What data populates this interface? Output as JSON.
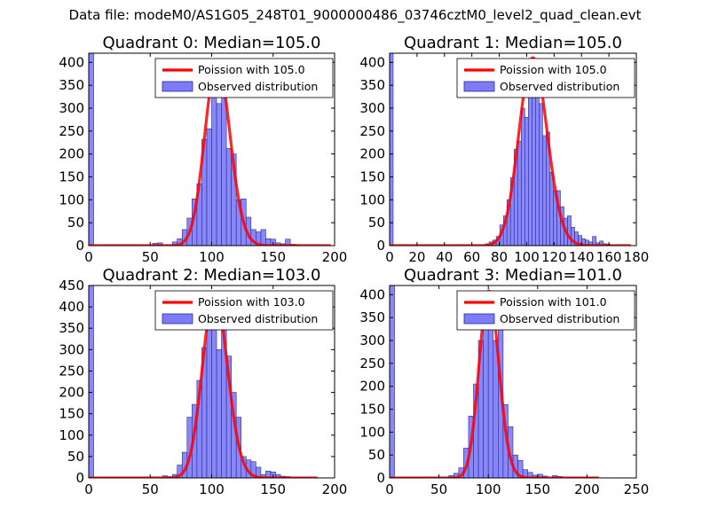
{
  "figure": {
    "suptitle": "Data file: modeM0/AS1G05_248T01_9000000486_03746cztM0_level2_quad_clean.evt"
  },
  "colors": {
    "bar_fill": "#7b7bfb",
    "bar_edge": "#2a2a90",
    "poisson_line": "#ff0000",
    "poisson_overlap": "#f08a8a",
    "axes": "#000000",
    "legend_edge": "#000000"
  },
  "chart_data": [
    {
      "type": "bar",
      "title": "Quadrant 0: Median=105.0",
      "xlim": [
        0,
        200
      ],
      "ylim": [
        0,
        420
      ],
      "xticks": [
        0,
        50,
        100,
        150,
        200
      ],
      "yticks": [
        0,
        50,
        100,
        150,
        200,
        250,
        300,
        350,
        400
      ],
      "median": 105.0,
      "legend": {
        "position": "upper right",
        "line_label": "Poission with 105.0",
        "bar_label": "Observed distribution"
      },
      "bins": [
        {
          "x0": 0,
          "w": 4,
          "v": 420
        },
        {
          "x0": 52,
          "w": 4,
          "v": 5
        },
        {
          "x0": 56,
          "w": 4,
          "v": 6
        },
        {
          "x0": 60,
          "w": 4,
          "v": 0
        },
        {
          "x0": 68,
          "w": 4,
          "v": 8
        },
        {
          "x0": 72,
          "w": 4,
          "v": 15
        },
        {
          "x0": 76,
          "w": 4,
          "v": 35
        },
        {
          "x0": 80,
          "w": 4,
          "v": 60
        },
        {
          "x0": 84,
          "w": 4,
          "v": 102
        },
        {
          "x0": 88,
          "w": 4,
          "v": 135
        },
        {
          "x0": 92,
          "w": 4,
          "v": 232
        },
        {
          "x0": 96,
          "w": 4,
          "v": 255
        },
        {
          "x0": 100,
          "w": 4,
          "v": 390
        },
        {
          "x0": 104,
          "w": 4,
          "v": 310
        },
        {
          "x0": 108,
          "w": 4,
          "v": 340
        },
        {
          "x0": 112,
          "w": 4,
          "v": 212
        },
        {
          "x0": 116,
          "w": 4,
          "v": 200
        },
        {
          "x0": 120,
          "w": 4,
          "v": 100
        },
        {
          "x0": 124,
          "w": 4,
          "v": 102
        },
        {
          "x0": 128,
          "w": 4,
          "v": 62
        },
        {
          "x0": 132,
          "w": 4,
          "v": 35
        },
        {
          "x0": 136,
          "w": 4,
          "v": 30
        },
        {
          "x0": 140,
          "w": 4,
          "v": 35
        },
        {
          "x0": 144,
          "w": 4,
          "v": 15
        },
        {
          "x0": 148,
          "w": 4,
          "v": 14
        },
        {
          "x0": 152,
          "w": 4,
          "v": 6
        },
        {
          "x0": 156,
          "w": 4,
          "v": 4
        },
        {
          "x0": 160,
          "w": 4,
          "v": 14
        },
        {
          "x0": 164,
          "w": 4,
          "v": 3
        },
        {
          "x0": 168,
          "w": 4,
          "v": 2
        }
      ],
      "curve": {
        "mu": 105.0,
        "peak": 400,
        "x_min": 0,
        "x_max": 197
      }
    },
    {
      "type": "bar",
      "title": "Quadrant 1: Median=105.0",
      "xlim": [
        0,
        180
      ],
      "ylim": [
        0,
        420
      ],
      "xticks": [
        0,
        20,
        40,
        60,
        80,
        100,
        120,
        140,
        160,
        180
      ],
      "yticks": [
        0,
        50,
        100,
        150,
        200,
        250,
        300,
        350,
        400
      ],
      "median": 105.0,
      "legend": {
        "position": "upper right",
        "line_label": "Poission with 105.0",
        "bar_label": "Observed distribution"
      },
      "bins": [
        {
          "x0": 0,
          "w": 2.6,
          "v": 420
        },
        {
          "x0": 70,
          "w": 2.6,
          "v": 4
        },
        {
          "x0": 72.6,
          "w": 2.6,
          "v": 8
        },
        {
          "x0": 75.2,
          "w": 2.6,
          "v": 12
        },
        {
          "x0": 77.8,
          "w": 2.6,
          "v": 20
        },
        {
          "x0": 80.4,
          "w": 2.6,
          "v": 45
        },
        {
          "x0": 83,
          "w": 2.6,
          "v": 65
        },
        {
          "x0": 85.6,
          "w": 2.6,
          "v": 100
        },
        {
          "x0": 88.2,
          "w": 2.6,
          "v": 148
        },
        {
          "x0": 90.8,
          "w": 2.6,
          "v": 210
        },
        {
          "x0": 93.4,
          "w": 2.6,
          "v": 228
        },
        {
          "x0": 96,
          "w": 2.6,
          "v": 300
        },
        {
          "x0": 98.6,
          "w": 2.6,
          "v": 280
        },
        {
          "x0": 101.2,
          "w": 2.6,
          "v": 395
        },
        {
          "x0": 103.8,
          "w": 2.6,
          "v": 325
        },
        {
          "x0": 106.4,
          "w": 2.6,
          "v": 345
        },
        {
          "x0": 109,
          "w": 2.6,
          "v": 310
        },
        {
          "x0": 111.6,
          "w": 2.6,
          "v": 240
        },
        {
          "x0": 114.2,
          "w": 2.6,
          "v": 248
        },
        {
          "x0": 116.8,
          "w": 2.6,
          "v": 160
        },
        {
          "x0": 119.4,
          "w": 2.6,
          "v": 120
        },
        {
          "x0": 122,
          "w": 2.6,
          "v": 120
        },
        {
          "x0": 124.6,
          "w": 2.6,
          "v": 85
        },
        {
          "x0": 127.2,
          "w": 2.6,
          "v": 60
        },
        {
          "x0": 129.8,
          "w": 2.6,
          "v": 65
        },
        {
          "x0": 132.4,
          "w": 2.6,
          "v": 40
        },
        {
          "x0": 135,
          "w": 2.6,
          "v": 30
        },
        {
          "x0": 137.6,
          "w": 2.6,
          "v": 22
        },
        {
          "x0": 140.2,
          "w": 2.6,
          "v": 15
        },
        {
          "x0": 142.8,
          "w": 2.6,
          "v": 12
        },
        {
          "x0": 145.4,
          "w": 2.6,
          "v": 8
        },
        {
          "x0": 148,
          "w": 2.6,
          "v": 20
        },
        {
          "x0": 150.6,
          "w": 2.6,
          "v": 6
        },
        {
          "x0": 153.2,
          "w": 2.6,
          "v": 10
        },
        {
          "x0": 155.8,
          "w": 2.6,
          "v": 4
        },
        {
          "x0": 158.4,
          "w": 2.6,
          "v": 3
        }
      ],
      "curve": {
        "mu": 105.0,
        "peak": 410,
        "x_min": 0,
        "x_max": 176
      }
    },
    {
      "type": "bar",
      "title": "Quadrant 2: Median=103.0",
      "xlim": [
        0,
        200
      ],
      "ylim": [
        0,
        450
      ],
      "xticks": [
        0,
        50,
        100,
        150,
        200
      ],
      "yticks": [
        0,
        50,
        100,
        150,
        200,
        250,
        300,
        350,
        400,
        450
      ],
      "median": 103.0,
      "legend": {
        "position": "upper right",
        "line_label": "Poission with 103.0",
        "bar_label": "Observed distribution"
      },
      "bins": [
        {
          "x0": 0,
          "w": 4,
          "v": 450
        },
        {
          "x0": 60,
          "w": 4,
          "v": 5
        },
        {
          "x0": 64,
          "w": 4,
          "v": 3
        },
        {
          "x0": 68,
          "w": 4,
          "v": 8
        },
        {
          "x0": 72,
          "w": 4,
          "v": 30
        },
        {
          "x0": 76,
          "w": 4,
          "v": 60
        },
        {
          "x0": 80,
          "w": 4,
          "v": 142
        },
        {
          "x0": 84,
          "w": 4,
          "v": 172
        },
        {
          "x0": 88,
          "w": 4,
          "v": 228
        },
        {
          "x0": 92,
          "w": 4,
          "v": 305
        },
        {
          "x0": 96,
          "w": 4,
          "v": 350
        },
        {
          "x0": 100,
          "w": 4,
          "v": 395
        },
        {
          "x0": 104,
          "w": 4,
          "v": 300
        },
        {
          "x0": 108,
          "w": 4,
          "v": 390
        },
        {
          "x0": 112,
          "w": 4,
          "v": 285
        },
        {
          "x0": 116,
          "w": 4,
          "v": 200
        },
        {
          "x0": 120,
          "w": 4,
          "v": 142
        },
        {
          "x0": 124,
          "w": 4,
          "v": 50
        },
        {
          "x0": 128,
          "w": 4,
          "v": 42
        },
        {
          "x0": 132,
          "w": 4,
          "v": 38
        },
        {
          "x0": 136,
          "w": 4,
          "v": 25
        },
        {
          "x0": 140,
          "w": 4,
          "v": 8
        },
        {
          "x0": 144,
          "w": 4,
          "v": 16
        },
        {
          "x0": 148,
          "w": 4,
          "v": 14
        },
        {
          "x0": 152,
          "w": 4,
          "v": 8
        },
        {
          "x0": 156,
          "w": 4,
          "v": 4
        },
        {
          "x0": 160,
          "w": 4,
          "v": 3
        }
      ],
      "curve": {
        "mu": 103.0,
        "peak": 432,
        "x_min": 0,
        "x_max": 186
      }
    },
    {
      "type": "bar",
      "title": "Quadrant 3: Median=101.0",
      "xlim": [
        0,
        250
      ],
      "ylim": [
        0,
        420
      ],
      "xticks": [
        0,
        50,
        100,
        150,
        200,
        250
      ],
      "yticks": [
        0,
        50,
        100,
        150,
        200,
        250,
        300,
        350,
        400
      ],
      "median": 101.0,
      "legend": {
        "position": "upper right",
        "line_label": "Poission with 101.0",
        "bar_label": "Observed distribution"
      },
      "bins": [
        {
          "x0": 0,
          "w": 5,
          "v": 420
        },
        {
          "x0": 60,
          "w": 5,
          "v": 5
        },
        {
          "x0": 65,
          "w": 5,
          "v": 10
        },
        {
          "x0": 70,
          "w": 5,
          "v": 22
        },
        {
          "x0": 75,
          "w": 5,
          "v": 65
        },
        {
          "x0": 80,
          "w": 5,
          "v": 135
        },
        {
          "x0": 85,
          "w": 5,
          "v": 205
        },
        {
          "x0": 90,
          "w": 5,
          "v": 300
        },
        {
          "x0": 95,
          "w": 5,
          "v": 350
        },
        {
          "x0": 100,
          "w": 5,
          "v": 395
        },
        {
          "x0": 105,
          "w": 5,
          "v": 300
        },
        {
          "x0": 110,
          "w": 5,
          "v": 360
        },
        {
          "x0": 115,
          "w": 5,
          "v": 160
        },
        {
          "x0": 120,
          "w": 5,
          "v": 112
        },
        {
          "x0": 125,
          "w": 5,
          "v": 50
        },
        {
          "x0": 130,
          "w": 5,
          "v": 38
        },
        {
          "x0": 135,
          "w": 5,
          "v": 18
        },
        {
          "x0": 140,
          "w": 5,
          "v": 12
        },
        {
          "x0": 145,
          "w": 5,
          "v": 6
        },
        {
          "x0": 150,
          "w": 5,
          "v": 8
        },
        {
          "x0": 155,
          "w": 5,
          "v": 4
        },
        {
          "x0": 165,
          "w": 5,
          "v": 5
        },
        {
          "x0": 170,
          "w": 5,
          "v": 3
        }
      ],
      "curve": {
        "mu": 101.0,
        "peak": 408,
        "x_min": 0,
        "x_max": 212
      }
    }
  ]
}
